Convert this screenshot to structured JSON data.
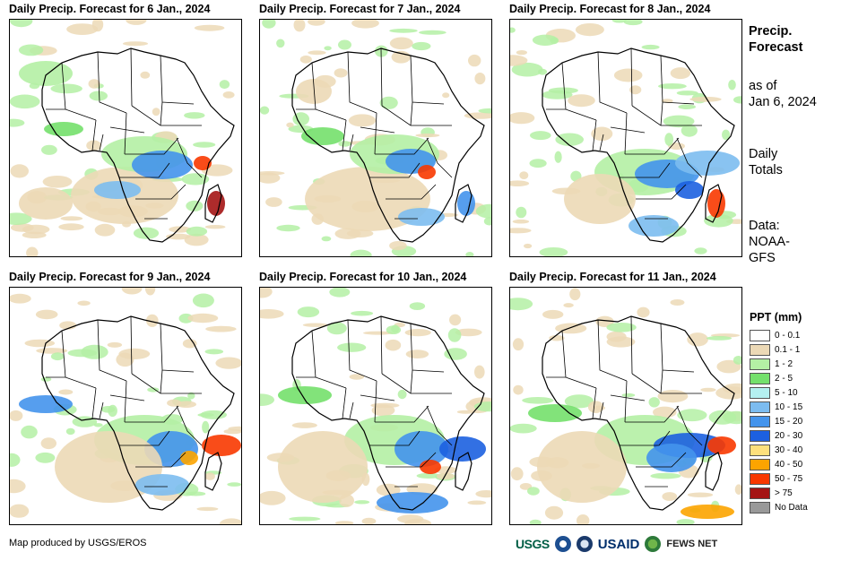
{
  "panels": [
    {
      "title": "Daily Precip. Forecast for 6 Jan., 2024"
    },
    {
      "title": "Daily Precip. Forecast for 7 Jan., 2024"
    },
    {
      "title": "Daily Precip. Forecast for 8 Jan., 2024"
    },
    {
      "title": "Daily Precip. Forecast for 9 Jan., 2024"
    },
    {
      "title": "Daily Precip. Forecast for 10 Jan., 2024"
    },
    {
      "title": "Daily Precip. Forecast for 11 Jan., 2024"
    }
  ],
  "sidebar": {
    "title_line1": "Precip.",
    "title_line2": "Forecast",
    "asof_line1": "as of",
    "asof_line2": "Jan 6, 2024",
    "totals_line1": "Daily",
    "totals_line2": "Totals",
    "data_line1": "Data:",
    "data_line2": "NOAA-",
    "data_line3": "GFS"
  },
  "legend": {
    "title": "PPT (mm)",
    "items": [
      {
        "label": "0 - 0.1",
        "color": "#ffffff"
      },
      {
        "label": "0.1 - 1",
        "color": "#ecd9b6"
      },
      {
        "label": "1 - 2",
        "color": "#b4f0a4"
      },
      {
        "label": "2 - 5",
        "color": "#74e06c"
      },
      {
        "label": "5 - 10",
        "color": "#b4f0f0"
      },
      {
        "label": "10 - 15",
        "color": "#7cbcf0"
      },
      {
        "label": "15 - 20",
        "color": "#4494ec"
      },
      {
        "label": "20 - 30",
        "color": "#1c60e0"
      },
      {
        "label": "30 - 40",
        "color": "#fde07c"
      },
      {
        "label": "40 - 50",
        "color": "#fca400"
      },
      {
        "label": "50 - 75",
        "color": "#f83800"
      },
      {
        "label": "> 75",
        "color": "#a41414"
      },
      {
        "label": "No Data",
        "color": "#999999"
      }
    ]
  },
  "footer": {
    "credit": "Map produced by USGS/EROS",
    "logo_usgs": "USGS",
    "logo_usaid": "USAID",
    "logo_fews": "FEWS NET"
  }
}
